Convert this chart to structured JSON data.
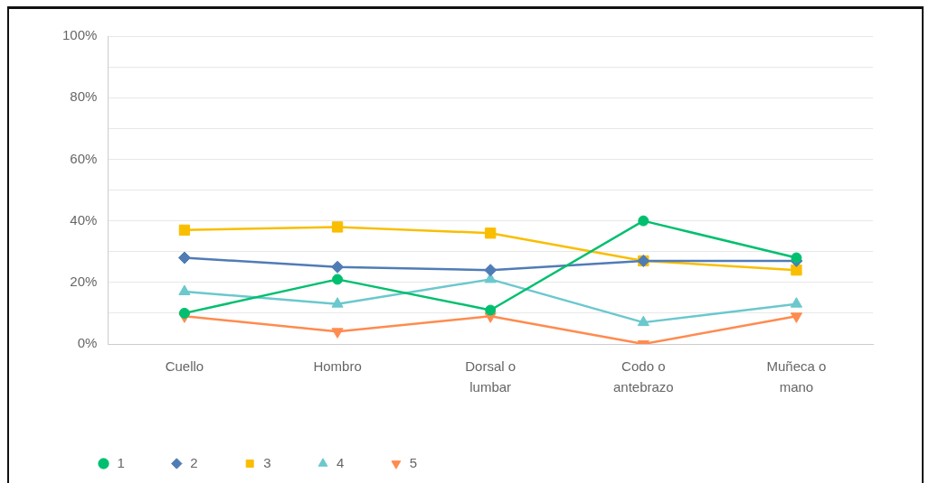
{
  "chart_data": {
    "type": "line",
    "categories": [
      "Cuello",
      "Hombro",
      "Dorsal o lumbar",
      "Codo o antebrazo",
      "Muñeca o mano"
    ],
    "series": [
      {
        "name": "1",
        "color": "#00bf6f",
        "marker": "circle",
        "values": [
          10,
          21,
          11,
          40,
          28
        ]
      },
      {
        "name": "2",
        "color": "#507cb6",
        "marker": "diamond",
        "values": [
          28,
          25,
          24,
          27,
          27
        ]
      },
      {
        "name": "3",
        "color": "#f9be00",
        "marker": "square",
        "values": [
          37,
          38,
          36,
          27,
          24
        ]
      },
      {
        "name": "4",
        "color": "#6bc8cd",
        "marker": "triangle",
        "values": [
          17,
          13,
          21,
          7,
          13
        ]
      },
      {
        "name": "5",
        "color": "#ff8b4f",
        "marker": "triangle-down",
        "values": [
          9,
          4,
          9,
          0,
          9
        ]
      }
    ],
    "ylim": [
      0,
      100
    ],
    "yticks": [
      {
        "value": 0,
        "label": "0%"
      },
      {
        "value": 10,
        "label": null
      },
      {
        "value": 20,
        "label": "20%"
      },
      {
        "value": 30,
        "label": null
      },
      {
        "value": 40,
        "label": "40%"
      },
      {
        "value": 50,
        "label": null
      },
      {
        "value": 60,
        "label": "60%"
      },
      {
        "value": 70,
        "label": null
      },
      {
        "value": 80,
        "label": "80%"
      },
      {
        "value": 90,
        "label": null
      },
      {
        "value": 100,
        "label": "100%"
      }
    ],
    "grid": "y",
    "legend": "bottom left"
  }
}
